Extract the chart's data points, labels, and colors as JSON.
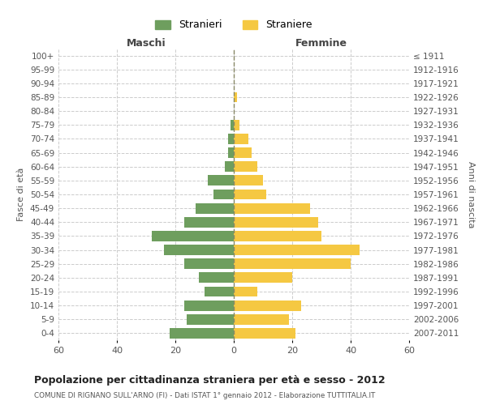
{
  "age_groups": [
    "100+",
    "95-99",
    "90-94",
    "85-89",
    "80-84",
    "75-79",
    "70-74",
    "65-69",
    "60-64",
    "55-59",
    "50-54",
    "45-49",
    "40-44",
    "35-39",
    "30-34",
    "25-29",
    "20-24",
    "15-19",
    "10-14",
    "5-9",
    "0-4"
  ],
  "birth_years": [
    "≤ 1911",
    "1912-1916",
    "1917-1921",
    "1922-1926",
    "1927-1931",
    "1932-1936",
    "1937-1941",
    "1942-1946",
    "1947-1951",
    "1952-1956",
    "1957-1961",
    "1962-1966",
    "1967-1971",
    "1972-1976",
    "1977-1981",
    "1982-1986",
    "1987-1991",
    "1992-1996",
    "1997-2001",
    "2002-2006",
    "2007-2011"
  ],
  "maschi": [
    0,
    0,
    0,
    0,
    0,
    1,
    2,
    2,
    3,
    9,
    7,
    13,
    17,
    28,
    24,
    17,
    12,
    10,
    17,
    16,
    22
  ],
  "femmine": [
    0,
    0,
    0,
    1,
    0,
    2,
    5,
    6,
    8,
    10,
    11,
    26,
    29,
    30,
    43,
    40,
    20,
    8,
    23,
    19,
    21
  ],
  "maschi_color": "#6e9e5e",
  "femmine_color": "#f5c842",
  "background_color": "#ffffff",
  "grid_color": "#cccccc",
  "title": "Popolazione per cittadinanza straniera per età e sesso - 2012",
  "subtitle": "COMUNE DI RIGNANO SULL'ARNO (FI) - Dati ISTAT 1° gennaio 2012 - Elaborazione TUTTITALIA.IT",
  "xlabel_left": "Maschi",
  "xlabel_right": "Femmine",
  "ylabel_left": "Fasce di età",
  "ylabel_right": "Anni di nascita",
  "legend_maschi": "Stranieri",
  "legend_femmine": "Straniere",
  "xlim": 60
}
